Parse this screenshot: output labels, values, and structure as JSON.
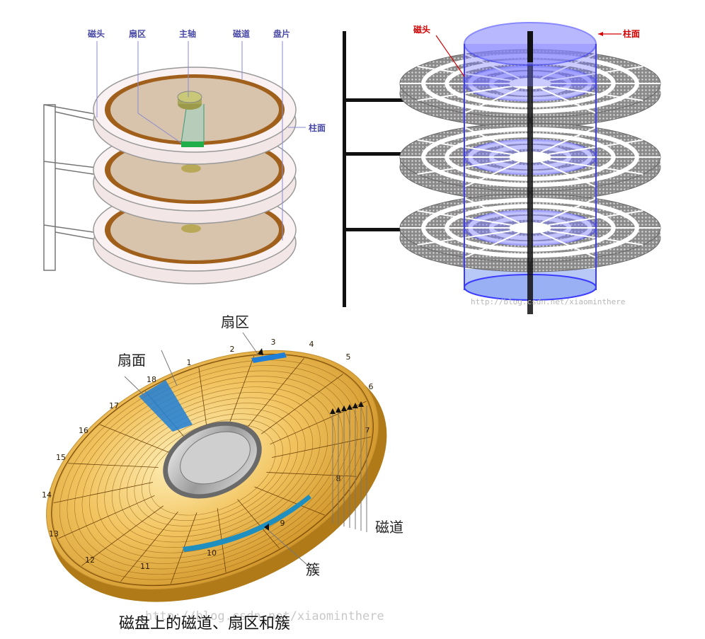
{
  "diagram1": {
    "labels": {
      "head": "磁头",
      "sector": "扇区",
      "spindle": "主轴",
      "track": "磁道",
      "platter": "盘片",
      "cylinder": "柱面"
    }
  },
  "diagram2": {
    "labels": {
      "head": "磁头",
      "cylinder": "柱面"
    },
    "watermark": "http://blog.csdn.net/xiaominthere"
  },
  "diagram3": {
    "labels": {
      "sector": "扇区",
      "surface": "扇面",
      "track": "磁道",
      "cluster": "簇"
    },
    "sector_numbers": [
      "1",
      "2",
      "3",
      "4",
      "5",
      "6",
      "7",
      "8",
      "9",
      "10",
      "11",
      "12",
      "13",
      "14",
      "15",
      "16",
      "17",
      "18"
    ],
    "watermark": "http://blog.csdn.net/xiaominthere"
  },
  "caption": "磁盘上的磁道、扇区和簇",
  "colors": {
    "label_blue": "#4a4aa8",
    "label_red": "#d40000",
    "cylinder_blue": "#3b3bff",
    "track_brown": "#a0601c",
    "sector_green": "#1fae4a",
    "disk_gold": "#e8b04a",
    "sector_highlight": "#1f7fd8"
  }
}
